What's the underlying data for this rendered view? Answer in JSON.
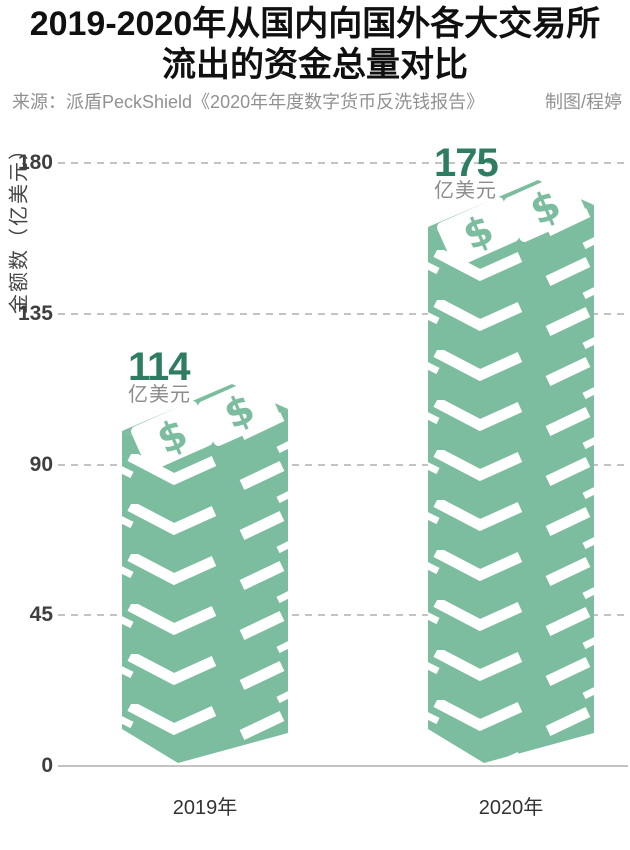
{
  "title": {
    "line1": "2019-2020年从国内向国外各大交易所",
    "line2": "流出的资金总量对比"
  },
  "source": {
    "left": "来源：派盾PeckShield《2020年年度数字货币反洗钱报告》",
    "right": "制图/程婷"
  },
  "chart_data": {
    "type": "bar",
    "categories": [
      "2019年",
      "2020年"
    ],
    "values": [
      114,
      175
    ],
    "value_unit_label": "亿美元",
    "ylabel": "金额数（亿美元）",
    "yticks": [
      0,
      45,
      90,
      135,
      180
    ],
    "ylim": [
      0,
      180
    ],
    "grid": "horizontal dashed gridlines at 45/90/135/180, solid zero axis line",
    "legend": "none",
    "bar_style": "isometric stack of dollar-bill layers with two $ bills on the top face",
    "colors": {
      "bar_green": "#7cbc9f",
      "value_label_green": "#2e7d63",
      "unit_label_gray": "#8c8c8c",
      "gridline_gray": "#c3c3c3",
      "tick_label": "#3f3f3f",
      "axis_title": "#454545",
      "category_label": "#333333",
      "bill_white": "#ffffff",
      "title_black": "#101010",
      "source_gray": "#919191"
    }
  },
  "icons": {
    "dollar_icon": "$"
  }
}
